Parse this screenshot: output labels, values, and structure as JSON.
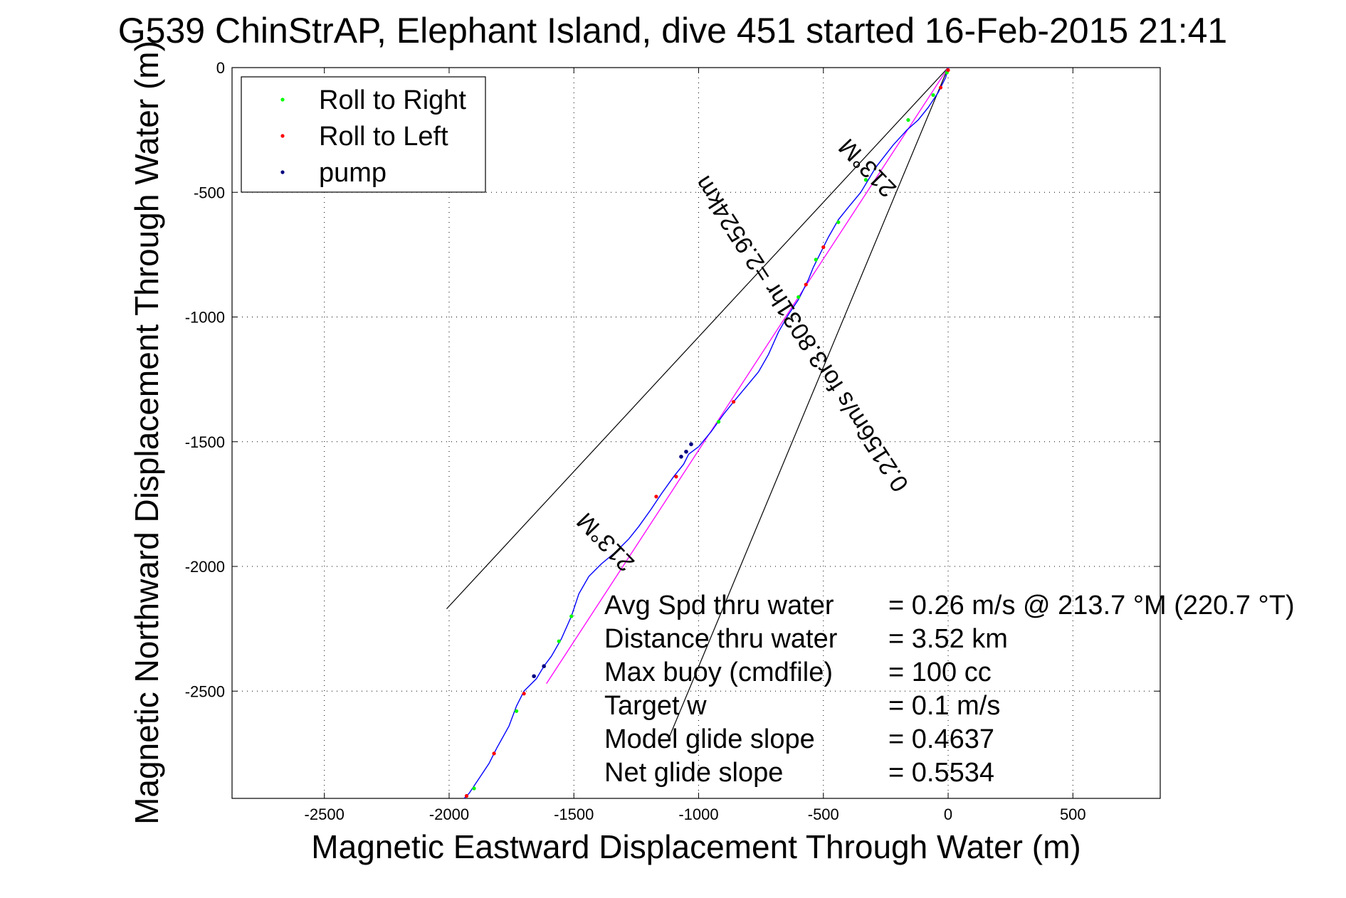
{
  "chart_data": {
    "type": "scatter",
    "title": "G539 ChinStrAP, Elephant Island, dive 451 started 16-Feb-2015 21:41",
    "xlabel": "Magnetic Eastward Displacement Through Water (m)",
    "ylabel": "Magnetic Northward Displacement Through Water (m)",
    "xlim": [
      -2870,
      850
    ],
    "ylim": [
      -2930,
      0
    ],
    "xticks": [
      -2500,
      -2000,
      -1500,
      -1000,
      -500,
      0,
      500
    ],
    "yticks": [
      0,
      -500,
      -1000,
      -1500,
      -2000,
      -2500
    ],
    "grid": true,
    "legend_position": "top-left",
    "legend": [
      {
        "label": "Roll to Right",
        "color": "#00ff00"
      },
      {
        "label": "Roll to Left",
        "color": "#ff0000"
      },
      {
        "label": "pump",
        "color": "#000080"
      }
    ],
    "track_color": "#0000ff",
    "track": [
      [
        0,
        0
      ],
      [
        -10,
        -40
      ],
      [
        -40,
        -100
      ],
      [
        -80,
        -160
      ],
      [
        -120,
        -210
      ],
      [
        -165,
        -250
      ],
      [
        -220,
        -310
      ],
      [
        -290,
        -400
      ],
      [
        -350,
        -500
      ],
      [
        -400,
        -560
      ],
      [
        -440,
        -610
      ],
      [
        -480,
        -680
      ],
      [
        -520,
        -760
      ],
      [
        -540,
        -800
      ],
      [
        -560,
        -850
      ],
      [
        -575,
        -880
      ],
      [
        -600,
        -930
      ],
      [
        -640,
        -990
      ],
      [
        -680,
        -1060
      ],
      [
        -720,
        -1150
      ],
      [
        -760,
        -1220
      ],
      [
        -810,
        -1280
      ],
      [
        -860,
        -1340
      ],
      [
        -900,
        -1390
      ],
      [
        -950,
        -1460
      ],
      [
        -1000,
        -1520
      ],
      [
        -1040,
        -1550
      ],
      [
        -1060,
        -1590
      ],
      [
        -1100,
        -1640
      ],
      [
        -1150,
        -1710
      ],
      [
        -1190,
        -1770
      ],
      [
        -1240,
        -1840
      ],
      [
        -1280,
        -1890
      ],
      [
        -1330,
        -1940
      ],
      [
        -1390,
        -1990
      ],
      [
        -1440,
        -2040
      ],
      [
        -1480,
        -2110
      ],
      [
        -1510,
        -2200
      ],
      [
        -1550,
        -2290
      ],
      [
        -1590,
        -2360
      ],
      [
        -1620,
        -2400
      ],
      [
        -1650,
        -2450
      ],
      [
        -1700,
        -2500
      ],
      [
        -1730,
        -2560
      ],
      [
        -1760,
        -2640
      ],
      [
        -1810,
        -2730
      ],
      [
        -1840,
        -2790
      ],
      [
        -1880,
        -2850
      ],
      [
        -1920,
        -2910
      ],
      [
        -1940,
        -2930
      ]
    ],
    "roll_right_points": [
      [
        -5,
        -20
      ],
      [
        -60,
        -110
      ],
      [
        -160,
        -210
      ],
      [
        -330,
        -450
      ],
      [
        -440,
        -620
      ],
      [
        -530,
        -770
      ],
      [
        -600,
        -920
      ],
      [
        -920,
        -1420
      ],
      [
        -1510,
        -2200
      ],
      [
        -1560,
        -2300
      ],
      [
        -1730,
        -2580
      ],
      [
        -1900,
        -2890
      ]
    ],
    "roll_left_points": [
      [
        0,
        -10
      ],
      [
        -30,
        -80
      ],
      [
        -500,
        -720
      ],
      [
        -570,
        -870
      ],
      [
        -860,
        -1340
      ],
      [
        -1090,
        -1640
      ],
      [
        -1170,
        -1720
      ],
      [
        -1700,
        -2510
      ],
      [
        -1820,
        -2750
      ],
      [
        -1930,
        -2920
      ]
    ],
    "pump_points": [
      [
        -1030,
        -1510
      ],
      [
        -1050,
        -1540
      ],
      [
        -1070,
        -1560
      ],
      [
        -1620,
        -2400
      ],
      [
        -1660,
        -2440
      ]
    ],
    "heading_line": {
      "color": "#ff00ff",
      "from": [
        0,
        0
      ],
      "to": [
        -1610,
        -2470
      ]
    },
    "reference_lines": [
      {
        "from": [
          0,
          0
        ],
        "to": [
          -2010,
          -2170
        ]
      },
      {
        "from": [
          0,
          0
        ],
        "to": [
          -1120,
          -2690
        ]
      }
    ],
    "heading_labels": [
      {
        "text": "213°M",
        "x": -1350,
        "y": -1880
      },
      {
        "text": "213°M",
        "x": -300,
        "y": -380
      }
    ],
    "speed_label": "0.2156m/s for3.8031hr =2.9524km",
    "annotations": [
      {
        "label": "Avg Spd thru water",
        "value": "=  0.26 m/s @ 213.7 °M (220.7 °T)"
      },
      {
        "label": "Distance thru water",
        "value": "=  3.52 km"
      },
      {
        "label": "Max buoy (cmdfile)",
        "value": "= 100 cc"
      },
      {
        "label": "Target w",
        "value": "= 0.1 m/s"
      },
      {
        "label": "Model glide slope",
        "value": "= 0.4637"
      },
      {
        "label": "Net glide slope",
        "value": "= 0.5534"
      }
    ]
  }
}
